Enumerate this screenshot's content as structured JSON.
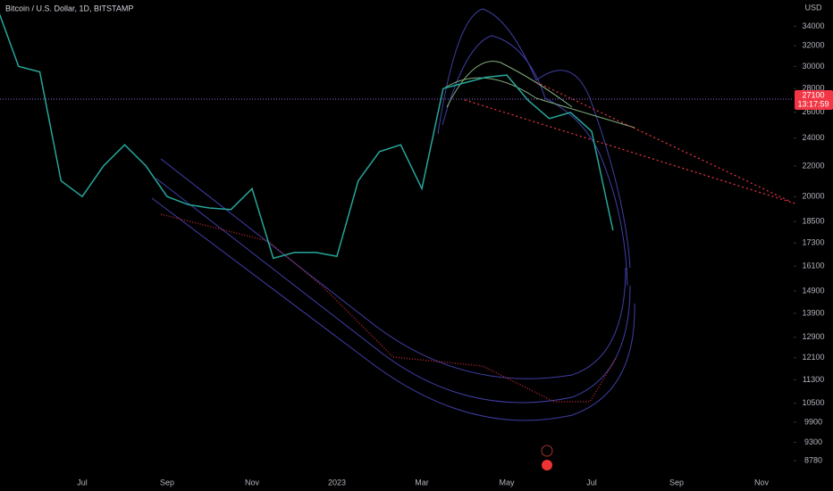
{
  "chart_data": {
    "type": "line",
    "title": "Bitcoin / U.S. Dollar, 1D, BITSTAMP",
    "y_axis_label": "USD",
    "log_scale": true,
    "color": "#26a69a",
    "categories": [
      null,
      null,
      null,
      null,
      "Jul",
      null,
      null,
      null,
      "Sep",
      null,
      null,
      null,
      "Nov",
      null,
      null,
      null,
      "2023",
      null,
      null,
      null,
      "Mar",
      null,
      null,
      null,
      "May",
      null,
      null,
      null,
      "Jul",
      null,
      null,
      null,
      "Sep",
      null,
      null,
      null,
      "Nov",
      null
    ],
    "values": [
      36000,
      30000,
      29500,
      21000,
      20000,
      22000,
      23500,
      22000,
      20000,
      19500,
      19300,
      19200,
      20500,
      16500,
      16800,
      16800,
      16600,
      21000,
      23000,
      23500,
      20500,
      28000,
      28500,
      29000,
      29200,
      27000,
      25500,
      26000,
      24500,
      18000,
      null,
      null,
      null,
      null,
      null,
      null,
      null,
      null
    ],
    "ylim": [
      8330,
      36900
    ],
    "yticks": [
      34000,
      32000,
      30000,
      28000,
      26000,
      24000,
      22000,
      20000,
      18500,
      17300,
      16100,
      14900,
      13900,
      12900,
      12100,
      11300,
      10500,
      9900,
      9300,
      8780
    ],
    "price_line": {
      "value": 27100,
      "label": "27100",
      "countdown": "13:17:59",
      "color": "#f23645"
    }
  }
}
